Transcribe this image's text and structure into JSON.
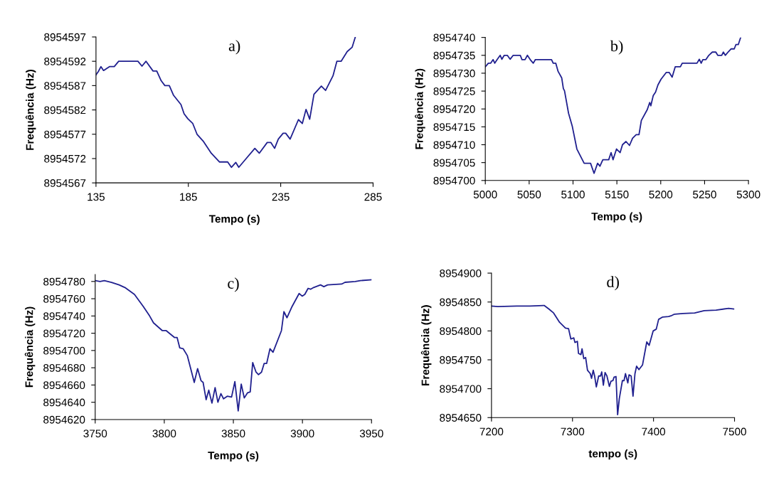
{
  "chart_data": [
    {
      "type": "line",
      "title": "a)",
      "xlabel": "Tempo (s)",
      "ylabel": "Frequência (Hz)",
      "xlim": [
        135,
        285
      ],
      "xticks": [
        135,
        185,
        235,
        285
      ],
      "ylim": [
        8954567,
        8954597
      ],
      "yticks": [
        8954567,
        8954572,
        8954577,
        8954582,
        8954587,
        8954592,
        8954597
      ],
      "x": [
        135,
        136.3,
        137.7,
        139.1,
        142.3,
        144.9,
        147.3,
        157.7,
        159.9,
        162.1,
        165.9,
        167.9,
        170.3,
        172.3,
        174.7,
        177,
        181,
        182.7,
        184.7,
        187.4,
        189.7,
        193,
        197.4,
        201.9,
        206.3,
        208.3,
        210.7,
        212.3,
        216.3,
        221,
        223.4,
        227.7,
        229.7,
        231.7,
        233.7,
        236.3,
        237.7,
        240.1,
        244.6,
        246.7,
        248.7,
        250.7,
        253,
        257,
        259.3,
        263.3,
        265.4,
        267.7,
        271,
        273.7,
        275.4
      ],
      "series": [
        {
          "color": "#20208f",
          "values": [
            8954589.2,
            8954589.9,
            8954590.9,
            8954590.1,
            8954590.9,
            8954590.9,
            8954592,
            8954592,
            8954591,
            8954592,
            8954590,
            8954590,
            8954588,
            8954587,
            8954587,
            8954585,
            8954583.1,
            8954581.2,
            8954580.2,
            8954579.2,
            8954577,
            8954575.6,
            8954573.1,
            8954571.3,
            8954571.3,
            8954570.2,
            8954571.2,
            8954570.2,
            8954572,
            8954574.1,
            8954573.1,
            8954575.3,
            8954575.3,
            8954574.1,
            8954576,
            8954577.2,
            8954577.2,
            8954576,
            8954580,
            8954579.2,
            8954582.1,
            8954580.1,
            8954585.2,
            8954586.9,
            8954586,
            8954589,
            8954592,
            8954592,
            8954594,
            8954594.9,
            8954597
          ]
        }
      ]
    },
    {
      "type": "line",
      "title": "b)",
      "xlabel": "Tempo (s)",
      "ylabel": "Frequência (Hz)",
      "xlim": [
        5000,
        5300
      ],
      "xticks": [
        5000,
        5050,
        5100,
        5150,
        5200,
        5250,
        5300
      ],
      "ylim": [
        8954700,
        8954740
      ],
      "yticks": [
        8954700,
        8954705,
        8954710,
        8954715,
        8954720,
        8954725,
        8954730,
        8954735,
        8954740
      ],
      "x": [
        5000,
        5003.5,
        5006.2,
        5008.9,
        5010.8,
        5013.5,
        5017,
        5018.9,
        5021.6,
        5025.1,
        5028.3,
        5031.8,
        5039.9,
        5041.8,
        5045.3,
        5048,
        5051.2,
        5054.7,
        5057.1,
        5075.5,
        5077.4,
        5080.3,
        5083,
        5087.1,
        5089,
        5090.3,
        5094.9,
        5099.2,
        5104.4,
        5112.7,
        5120,
        5124,
        5128,
        5130.7,
        5134,
        5140.7,
        5143.4,
        5145.6,
        5149.6,
        5153.7,
        5156.4,
        5160.4,
        5164.4,
        5167.9,
        5172,
        5175.2,
        5177.9,
        5184.6,
        5187.4,
        5188.7,
        5191.4,
        5194.1,
        5196.8,
        5200.3,
        5206.2,
        5209.7,
        5213,
        5216.5,
        5222.4,
        5224.5,
        5241.3,
        5244,
        5246.1,
        5248,
        5251.5,
        5254.8,
        5258.8,
        5262.8,
        5265,
        5269.5,
        5271.4,
        5273.6,
        5277.1,
        5280.3,
        5283.8,
        5285.7,
        5288.4,
        5291.1
      ],
      "series": [
        {
          "color": "#20208f",
          "values": [
            8954731.8,
            8954732.8,
            8954732.8,
            8954733.8,
            8954732.8,
            8954733.8,
            8954735,
            8954733.9,
            8954735,
            8954735,
            8954733.9,
            8954735,
            8954735,
            8954733.8,
            8954733.8,
            8954735,
            8954733.8,
            8954732.8,
            8954733.8,
            8954733.8,
            8954732.8,
            8954732.8,
            8954730.5,
            8954728.7,
            8954725.7,
            8954725.1,
            8954718.8,
            8954715.1,
            8954708.8,
            8954704.8,
            8954704.8,
            8954702,
            8954704.8,
            8954704,
            8954705.8,
            8954705.8,
            8954707.8,
            8954705.8,
            8954708.8,
            8954707.8,
            8954710,
            8954710.9,
            8954709.8,
            8954711.8,
            8954712.8,
            8954712.8,
            8954716.8,
            8954719.8,
            8954721.8,
            8954720.9,
            8954723.7,
            8954724.7,
            8954726.7,
            8954728.3,
            8954730.2,
            8954730.2,
            8954728.9,
            8954731.8,
            8954731.8,
            8954732.8,
            8954732.8,
            8954733.9,
            8954732.8,
            8954733.8,
            8954733.8,
            8954735,
            8954735.9,
            8954735.9,
            8954735,
            8954735,
            8954735.9,
            8954735,
            8954736,
            8954736.8,
            8954736.8,
            8954738,
            8954738,
            8954740
          ]
        }
      ]
    },
    {
      "type": "line",
      "title": "c)",
      "xlabel": "Tempo (s)",
      "ylabel": "Frequência (Hz)",
      "xlim": [
        3750,
        3950
      ],
      "xticks": [
        3750,
        3800,
        3850,
        3900,
        3950
      ],
      "ylim": [
        8954620,
        8954788
      ],
      "yticks": [
        8954620,
        8954640,
        8954660,
        8954680,
        8954700,
        8954720,
        8954740,
        8954760,
        8954780
      ],
      "x": [
        3750,
        3753.5,
        3756.6,
        3761.8,
        3767.3,
        3771.5,
        3778.4,
        3784.8,
        3789.4,
        3792.2,
        3798.6,
        3801.4,
        3807.5,
        3809.3,
        3811.2,
        3813.7,
        3816.7,
        3821.7,
        3824.1,
        3826.6,
        3828.1,
        3830.3,
        3832.2,
        3834.5,
        3836.8,
        3838.8,
        3841,
        3842.9,
        3845.6,
        3848.7,
        3851.1,
        3853.5,
        3855.7,
        3857.9,
        3860.3,
        3862.2,
        3864,
        3866.4,
        3868.2,
        3870.4,
        3872.3,
        3874.1,
        3876.5,
        3878.7,
        3884.8,
        3886.6,
        3888.8,
        3892.5,
        3897.6,
        3899.8,
        3901.7,
        3904.1,
        3905.9,
        3908.1,
        3913.1,
        3915.5,
        3918.2,
        3928.4,
        3930.8,
        3938.2,
        3941.9,
        3950
      ],
      "series": [
        {
          "color": "#20208f",
          "values": [
            8954781,
            8954780,
            8954781,
            8954779,
            8954776,
            8954773,
            8954765,
            8954751,
            8954740,
            8954732,
            8954723,
            8954723,
            8954715,
            8954715,
            8954703,
            8954702,
            8954694,
            8954663,
            8954679,
            8954665,
            8954663,
            8954643,
            8954654,
            8954639,
            8954657,
            8954640,
            8954650,
            8954644,
            8954647,
            8954646,
            8954664,
            8954630,
            8954661,
            8954645,
            8954651,
            8954652,
            8954686,
            8954675,
            8954672,
            8954675,
            8954685,
            8954685,
            8954702,
            8954698,
            8954723,
            8954745,
            8954738,
            8954751,
            8954766,
            8954763,
            8954765,
            8954772,
            8954771,
            8954773,
            8954776,
            8954774,
            8954776,
            8954777,
            8954779,
            8954780,
            8954781,
            8954782
          ]
        }
      ]
    },
    {
      "type": "line",
      "title": "d)",
      "xlabel": "tempo (s)",
      "ylabel": "Frequência (Hz)",
      "xlim": [
        7200,
        7500
      ],
      "xticks": [
        7200,
        7300,
        7400,
        7500
      ],
      "ylim": [
        8954650,
        8954900
      ],
      "yticks": [
        8954650,
        8954700,
        8954750,
        8954800,
        8954850,
        8954900
      ],
      "x": [
        7200,
        7207.9,
        7231.3,
        7247.4,
        7265,
        7270.8,
        7276.7,
        7284,
        7291.3,
        7295.1,
        7298,
        7301.6,
        7303,
        7306,
        7307.4,
        7310.4,
        7311.8,
        7313.9,
        7316.2,
        7318.5,
        7322,
        7323.5,
        7325.6,
        7327.3,
        7329.4,
        7332.3,
        7334.6,
        7336.1,
        7338.1,
        7340.2,
        7342.5,
        7345.5,
        7347.5,
        7349.9,
        7351.3,
        7353.7,
        7355.7,
        7357.8,
        7361.6,
        7363.6,
        7365.4,
        7368.3,
        7369.8,
        7372.4,
        7374.7,
        7377.1,
        7379.1,
        7382,
        7386.4,
        7391.7,
        7394.6,
        7399.6,
        7403.4,
        7406.3,
        7411.3,
        7418.6,
        7421.5,
        7425.9,
        7436.2,
        7450.8,
        7462.5,
        7477.2,
        7492.7,
        7499
      ],
      "series": [
        {
          "color": "#20208f",
          "values": [
            8954843,
            8954842,
            8954843,
            8954843,
            8954844,
            8954838,
            8954831,
            8954815,
            8954805,
            8954804,
            8954786,
            8954788,
            8954780,
            8954782,
            8954761,
            8954759,
            8954769,
            8954752,
            8954754,
            8954732,
            8954726,
            8954718,
            8954732,
            8954722,
            8954703,
            8954722,
            8954722,
            8954729,
            8954706,
            8954728,
            8954722,
            8954704,
            8954713,
            8954714,
            8954720,
            8954721,
            8954655,
            8954683,
            8954714,
            8954714,
            8954726,
            8954710,
            8954724,
            8954722,
            8954687,
            8954726,
            8954739,
            8954733,
            8954741,
            8954781,
            8954775,
            8954800,
            8954803,
            8954820,
            8954824,
            8954825,
            8954826,
            8954829,
            8954830,
            8954831,
            8954835,
            8954836,
            8954839,
            8954838
          ]
        }
      ]
    }
  ]
}
